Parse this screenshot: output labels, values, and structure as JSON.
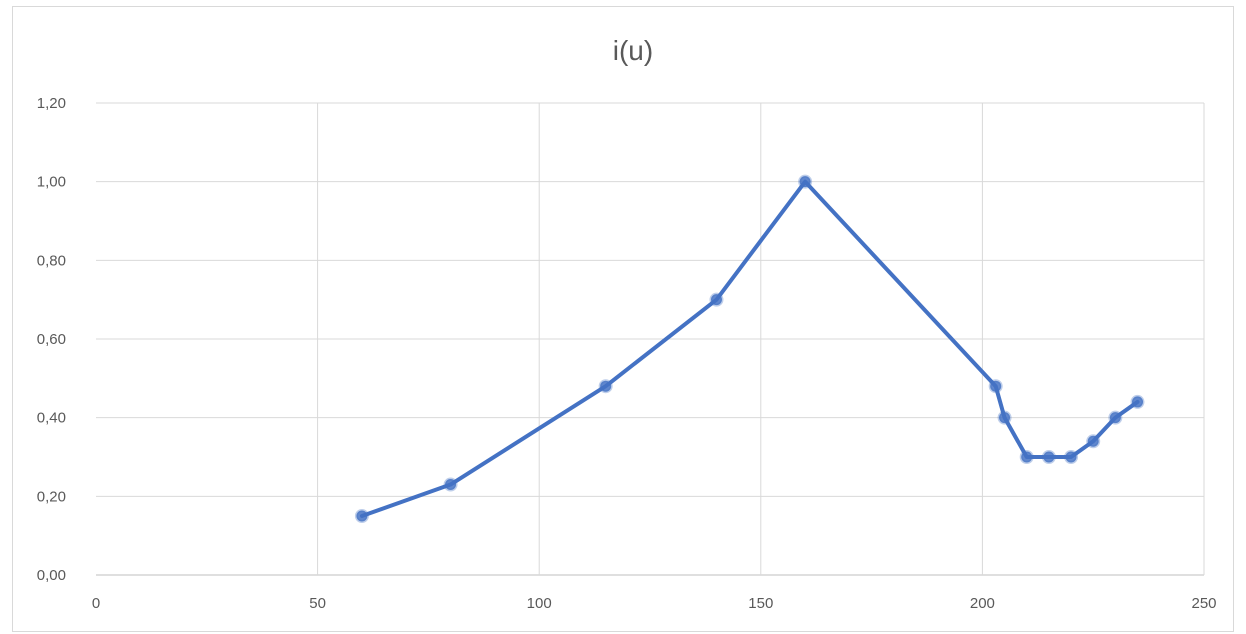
{
  "chart_data": {
    "type": "line",
    "title": "i(u)",
    "xlabel": "",
    "ylabel": "",
    "xlim": [
      0,
      250
    ],
    "ylim": [
      0,
      1.2
    ],
    "x_ticks": [
      {
        "value": 0,
        "label": "0"
      },
      {
        "value": 50,
        "label": "50"
      },
      {
        "value": 100,
        "label": "100"
      },
      {
        "value": 150,
        "label": "150"
      },
      {
        "value": 200,
        "label": "200"
      },
      {
        "value": 250,
        "label": "250"
      }
    ],
    "y_ticks": [
      {
        "value": 0,
        "label": "0,00"
      },
      {
        "value": 0.2,
        "label": "0,20"
      },
      {
        "value": 0.4,
        "label": "0,40"
      },
      {
        "value": 0.6,
        "label": "0,60"
      },
      {
        "value": 0.8,
        "label": "0,80"
      },
      {
        "value": 1.0,
        "label": "1,00"
      },
      {
        "value": 1.2,
        "label": "1,20"
      }
    ],
    "grid": true,
    "legend": "none",
    "series": [
      {
        "color": "#4472c4",
        "points": [
          {
            "x": 60,
            "y": 0.15
          },
          {
            "x": 80,
            "y": 0.23
          },
          {
            "x": 115,
            "y": 0.48
          },
          {
            "x": 140,
            "y": 0.7
          },
          {
            "x": 160,
            "y": 1.0
          },
          {
            "x": 203,
            "y": 0.48
          },
          {
            "x": 205,
            "y": 0.4
          },
          {
            "x": 210,
            "y": 0.3
          },
          {
            "x": 215,
            "y": 0.3
          },
          {
            "x": 220,
            "y": 0.3
          },
          {
            "x": 225,
            "y": 0.34
          },
          {
            "x": 230,
            "y": 0.4
          },
          {
            "x": 235,
            "y": 0.44
          }
        ]
      }
    ],
    "colors": {
      "grid": "#d9d9d9",
      "axis": "#bfbfbf",
      "text": "#595959",
      "series": "#4472c4"
    }
  }
}
